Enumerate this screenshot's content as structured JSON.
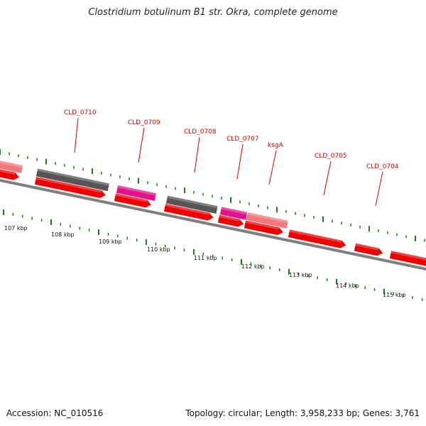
{
  "title": "Clostridium botulinum B1 str. Okra, complete genome",
  "footer": {
    "accession": "Accession: NC_010516",
    "summary": "Topology: circular; Length: 3,958,233 bp; Genes: 3,761"
  },
  "colors": {
    "cds_red": "#ee0000",
    "cds_pink": "#f07878",
    "magenta": "#e0148c",
    "gray": "#555555",
    "backbone": "#7f7f7f",
    "tick_green": "#1e7a1e",
    "label_red": "#cc0000"
  },
  "gene_labels": [
    "CLD_0710",
    "CLD_0709",
    "CLD_0708",
    "CLD_0707",
    "ksgA",
    "CLD_0705",
    "CLD_0704"
  ],
  "kbp_labels": [
    "107 kbp",
    "108 kbp",
    "109 kbp",
    "110 kbp",
    "111 kbp",
    "112 kbp",
    "113 kbp",
    "114 kbp",
    "115 kbp"
  ]
}
